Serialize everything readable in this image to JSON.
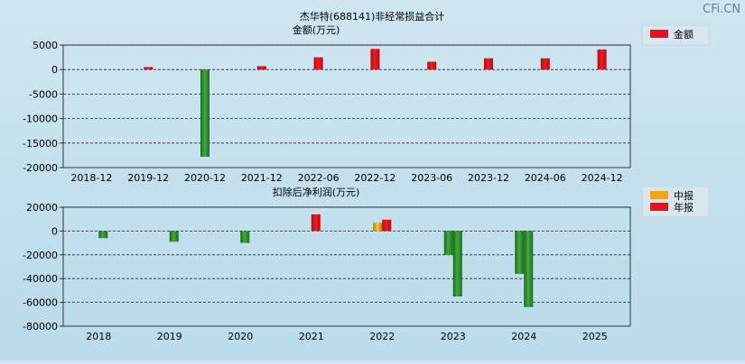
{
  "watermark": "CFi.CN",
  "chart_data": [
    {
      "type": "bar",
      "title": "杰华特(688141)非经常损益合计",
      "subtitle": "金额(万元)",
      "categories": [
        "2018-12",
        "2019-12",
        "2020-12",
        "2021-12",
        "2022-06",
        "2022-12",
        "2023-06",
        "2023-12",
        "2024-06",
        "2024-12"
      ],
      "series": [
        {
          "name": "金额",
          "color": "#e8121a",
          "values": [
            0,
            500,
            -17800,
            700,
            2500,
            4200,
            1600,
            2300,
            2300,
            4100
          ]
        }
      ],
      "ylim": [
        -20000,
        5000
      ],
      "yticks": [
        5000,
        0,
        -5000,
        -10000,
        -15000,
        -20000
      ],
      "ytick_labels": [
        "5000",
        "0",
        "-5000",
        "-10000",
        "-15000",
        "-20000"
      ],
      "positive_color": "#e8121a",
      "negative_color": "#2e8b2e",
      "grid": true,
      "legend": "top-right"
    },
    {
      "type": "bar",
      "title": "扣除后净利润(万元)",
      "categories": [
        "2018",
        "2019",
        "2020",
        "2021",
        "2022",
        "2023",
        "2024",
        "2025"
      ],
      "series": [
        {
          "name": "中报",
          "color": "#f5a21b",
          "values": [
            null,
            null,
            null,
            null,
            7000,
            -20000,
            -36000,
            null
          ]
        },
        {
          "name": "年报",
          "color": "#e8121a",
          "values": [
            -6000,
            -9000,
            -10000,
            14000,
            9500,
            -55000,
            -64000,
            null
          ]
        }
      ],
      "ylim": [
        -80000,
        20000
      ],
      "yticks": [
        20000,
        0,
        -20000,
        -40000,
        -60000,
        -80000
      ],
      "ytick_labels": [
        "20000",
        "0",
        "-20000",
        "-40000",
        "-60000",
        "-80000"
      ],
      "negative_color": "#2e8b2e",
      "grid": true,
      "legend": "top-right"
    }
  ]
}
